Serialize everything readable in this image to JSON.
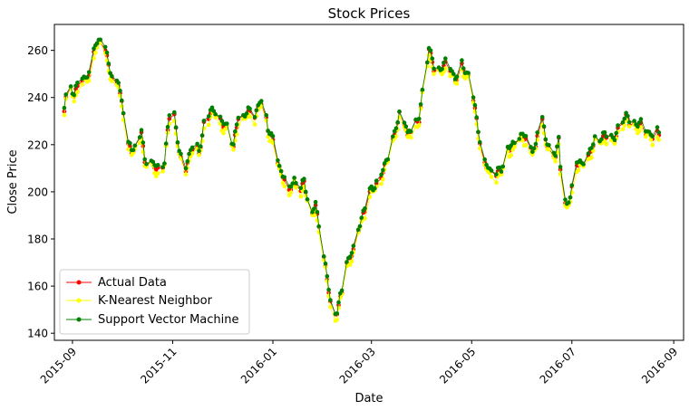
{
  "chart_data": {
    "type": "line",
    "title": "Stock Prices",
    "xlabel": "Date",
    "ylabel": "Close Price",
    "x_tick_labels": [
      "2015-09",
      "2015-11",
      "2016-01",
      "2016-03",
      "2016-05",
      "2016-07",
      "2016-09"
    ],
    "x_tick_dates": [
      "2015-09-01",
      "2015-11-01",
      "2016-01-01",
      "2016-03-01",
      "2016-05-01",
      "2016-07-01",
      "2016-09-01"
    ],
    "xlim": [
      "2015-08-21",
      "2016-09-07"
    ],
    "y_ticks": [
      140,
      160,
      180,
      200,
      220,
      240,
      260
    ],
    "y_tick_labels": [
      "140",
      "160",
      "180",
      "200",
      "220",
      "240",
      "260"
    ],
    "ylim": [
      137,
      271
    ],
    "grid": false,
    "legend_position": "lower-left",
    "anchors": [
      [
        "2015-08-27",
        236
      ],
      [
        "2015-08-29",
        248
      ],
      [
        "2015-09-02",
        240
      ],
      [
        "2015-09-06",
        247
      ],
      [
        "2015-09-11",
        250
      ],
      [
        "2015-09-15",
        262
      ],
      [
        "2015-09-19",
        264
      ],
      [
        "2015-09-21",
        260
      ],
      [
        "2015-09-25",
        248
      ],
      [
        "2015-09-29",
        246
      ],
      [
        "2015-10-02",
        234
      ],
      [
        "2015-10-04",
        221
      ],
      [
        "2015-10-07",
        216
      ],
      [
        "2015-10-10",
        220
      ],
      [
        "2015-10-13",
        227
      ],
      [
        "2015-10-15",
        212
      ],
      [
        "2015-10-19",
        211
      ],
      [
        "2015-10-23",
        210
      ],
      [
        "2015-10-27",
        213
      ],
      [
        "2015-10-30",
        231
      ],
      [
        "2015-11-02",
        231
      ],
      [
        "2015-11-05",
        218
      ],
      [
        "2015-11-08",
        208
      ],
      [
        "2015-11-11",
        214
      ],
      [
        "2015-11-14",
        220
      ],
      [
        "2015-11-17",
        217
      ],
      [
        "2015-11-20",
        229
      ],
      [
        "2015-11-24",
        232
      ],
      [
        "2015-11-27",
        234
      ],
      [
        "2015-11-30",
        231
      ],
      [
        "2015-12-04",
        227
      ],
      [
        "2015-12-08",
        218
      ],
      [
        "2015-12-11",
        233
      ],
      [
        "2015-12-14",
        232
      ],
      [
        "2015-12-17",
        233
      ],
      [
        "2015-12-20",
        230
      ],
      [
        "2015-12-24",
        238
      ],
      [
        "2015-12-26",
        240
      ],
      [
        "2015-12-29",
        226
      ],
      [
        "2016-01-02",
        219
      ],
      [
        "2016-01-05",
        210
      ],
      [
        "2016-01-08",
        206
      ],
      [
        "2016-01-11",
        200
      ],
      [
        "2016-01-14",
        205
      ],
      [
        "2016-01-17",
        199
      ],
      [
        "2016-01-20",
        204
      ],
      [
        "2016-01-24",
        189
      ],
      [
        "2016-01-27",
        195
      ],
      [
        "2016-01-31",
        176
      ],
      [
        "2016-02-03",
        162
      ],
      [
        "2016-02-06",
        149
      ],
      [
        "2016-02-09",
        150
      ],
      [
        "2016-02-12",
        157
      ],
      [
        "2016-02-15",
        168
      ],
      [
        "2016-02-19",
        176
      ],
      [
        "2016-02-22",
        185
      ],
      [
        "2016-02-26",
        191
      ],
      [
        "2016-03-01",
        201
      ],
      [
        "2016-03-04",
        204
      ],
      [
        "2016-03-08",
        208
      ],
      [
        "2016-03-12",
        215
      ],
      [
        "2016-03-16",
        228
      ],
      [
        "2016-03-19",
        236
      ],
      [
        "2016-03-23",
        222
      ],
      [
        "2016-03-26",
        229
      ],
      [
        "2016-03-30",
        231
      ],
      [
        "2016-04-02",
        246
      ],
      [
        "2016-04-05",
        260
      ],
      [
        "2016-04-09",
        251
      ],
      [
        "2016-04-13",
        252
      ],
      [
        "2016-04-17",
        254
      ],
      [
        "2016-04-21",
        248
      ],
      [
        "2016-04-25",
        253
      ],
      [
        "2016-04-29",
        248
      ],
      [
        "2016-05-02",
        240
      ],
      [
        "2016-05-05",
        226
      ],
      [
        "2016-05-08",
        212
      ],
      [
        "2016-05-11",
        210
      ],
      [
        "2016-05-15",
        207
      ],
      [
        "2016-05-19",
        208
      ],
      [
        "2016-05-23",
        219
      ],
      [
        "2016-05-27",
        220
      ],
      [
        "2016-05-31",
        222
      ],
      [
        "2016-06-03",
        223
      ],
      [
        "2016-06-07",
        219
      ],
      [
        "2016-06-09",
        218
      ],
      [
        "2016-06-12",
        233
      ],
      [
        "2016-06-15",
        222
      ],
      [
        "2016-06-18",
        218
      ],
      [
        "2016-06-21",
        216
      ],
      [
        "2016-06-23",
        221
      ],
      [
        "2016-06-25",
        196
      ],
      [
        "2016-06-28",
        193
      ],
      [
        "2016-07-01",
        203
      ],
      [
        "2016-07-04",
        212
      ],
      [
        "2016-07-07",
        210
      ],
      [
        "2016-07-11",
        215
      ],
      [
        "2016-07-15",
        223
      ],
      [
        "2016-07-19",
        221
      ],
      [
        "2016-07-23",
        225
      ],
      [
        "2016-07-27",
        222
      ],
      [
        "2016-07-31",
        229
      ],
      [
        "2016-08-03",
        232
      ],
      [
        "2016-08-07",
        228
      ],
      [
        "2016-08-11",
        228
      ],
      [
        "2016-08-15",
        226
      ],
      [
        "2016-08-19",
        224
      ],
      [
        "2016-08-23",
        224
      ]
    ],
    "series": [
      {
        "name": "Actual Data",
        "color": "#ff0000",
        "offset": 0.0,
        "marker_size": 2.3,
        "line_width": 0.8
      },
      {
        "name": "K-Nearest Neighbor",
        "color": "#ffff00",
        "offset": -1.6,
        "marker_size": 2.3,
        "line_width": 0.8
      },
      {
        "name": "Support Vector Machine",
        "color": "#008000",
        "offset": 0.8,
        "marker_size": 2.3,
        "line_width": 0.8
      }
    ]
  }
}
